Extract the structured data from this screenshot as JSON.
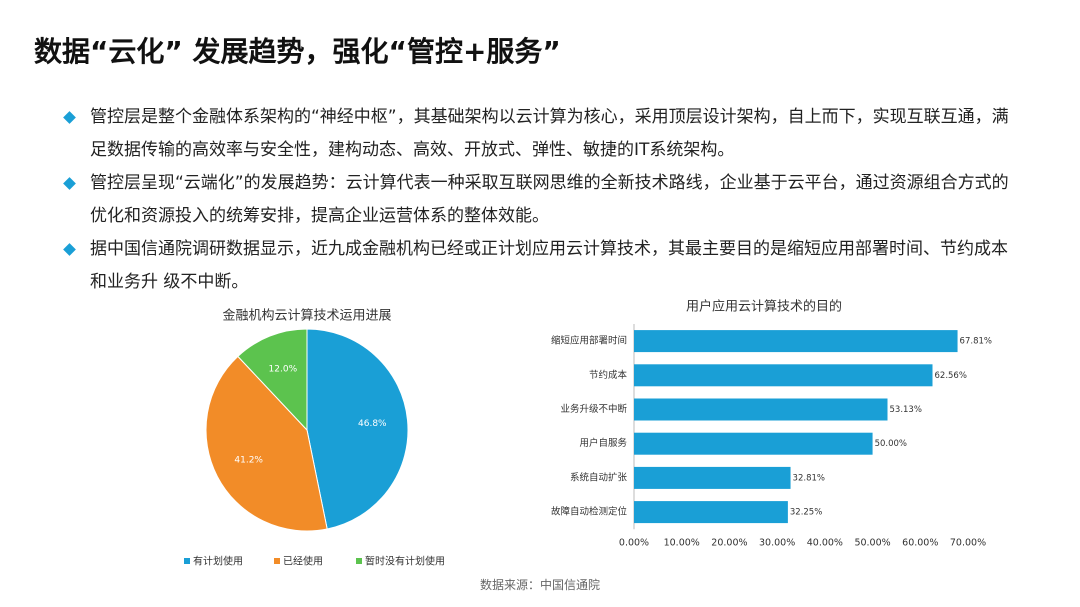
{
  "title": "数据“云化” 发展趋势，强化“管控+服务”",
  "bullets": [
    "管控层是整个金融体系架构的“神经中枢”，其基础架构以云计算为核心，采用顶层设计架构，自上而下，实现互联互通，满足数据传输的高效率与安全性，建构动态、高效、开放式、弹性、敏捷的IT系统架构。",
    "管控层呈现“云端化”的发展趋势：云计算代表一种采取互联网思维的全新技术路线，企业基于云平台，通过资源组合方式的优化和资源投入的统筹安排，提高企业运营体系的整体效能。",
    "据中国信通院调研数据显示，近九成金融机构已经或正计划应用云计算技术，其最主要目的是缩短应用部署时间、节约成本和业务升 级不中断。"
  ],
  "source": "数据来源：中国信通院",
  "chart_data": [
    {
      "type": "pie",
      "title": "金融机构云计算技术运用进展",
      "categories": [
        "有计划使用",
        "已经使用",
        "暂时没有计划使用"
      ],
      "values": [
        46.8,
        41.2,
        12.0
      ],
      "value_labels": [
        "46.8%",
        "41.2%",
        "12.0%"
      ],
      "colors": [
        "#1a9fd6",
        "#f28c28",
        "#5cc34e"
      ],
      "legend": "bottom"
    },
    {
      "type": "hbar",
      "title": "用户应用云计算技术的目的",
      "categories": [
        "缩短应用部署时间",
        "节约成本",
        "业务升级不中断",
        "用户自服务",
        "系统自动扩张",
        "故障自动检测定位"
      ],
      "values": [
        67.81,
        62.56,
        53.13,
        50.0,
        32.81,
        32.25
      ],
      "value_labels": [
        "67.81%",
        "62.56%",
        "53.13%",
        "50.00%",
        "32.81%",
        "32.25%"
      ],
      "color": "#1a9fd6",
      "xlim": [
        0,
        70
      ],
      "xticks": [
        {
          "value": 0,
          "label": "0.00%"
        },
        {
          "value": 10,
          "label": "10.00%"
        },
        {
          "value": 20,
          "label": "20.00%"
        },
        {
          "value": 30,
          "label": "30.00%"
        },
        {
          "value": 40,
          "label": "40.00%"
        },
        {
          "value": 50,
          "label": "50.00%"
        },
        {
          "value": 60,
          "label": "60.00%"
        },
        {
          "value": 70,
          "label": "70.00%"
        }
      ]
    }
  ]
}
